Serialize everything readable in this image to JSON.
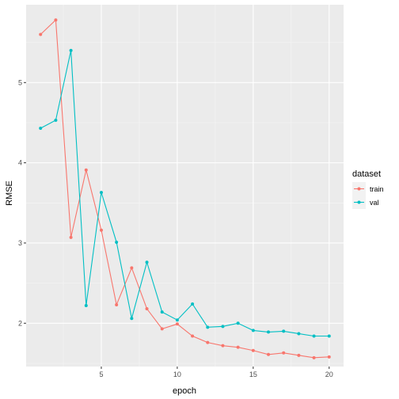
{
  "chart_data": {
    "type": "line",
    "xlabel": "epoch",
    "ylabel": "RMSE",
    "xlim": [
      0.05,
      20.95
    ],
    "ylim": [
      1.46,
      5.97
    ],
    "x_ticks": [
      5,
      10,
      15,
      20
    ],
    "y_ticks": [
      2,
      3,
      4,
      5
    ],
    "grid": true,
    "legend_position": "right",
    "legend_title": "dataset",
    "x": [
      1,
      2,
      3,
      4,
      5,
      6,
      7,
      8,
      9,
      10,
      11,
      12,
      13,
      14,
      15,
      16,
      17,
      18,
      19,
      20
    ],
    "series": [
      {
        "name": "train",
        "color": "#F8766D",
        "values": [
          5.6,
          5.78,
          3.07,
          3.91,
          3.16,
          2.23,
          2.69,
          2.18,
          1.93,
          1.99,
          1.84,
          1.76,
          1.72,
          1.7,
          1.66,
          1.61,
          1.63,
          1.6,
          1.57,
          1.58
        ]
      },
      {
        "name": "val",
        "color": "#00BFC4",
        "values": [
          4.43,
          4.53,
          5.4,
          2.22,
          3.63,
          3.01,
          2.06,
          2.76,
          2.14,
          2.04,
          2.24,
          1.95,
          1.96,
          2.0,
          1.91,
          1.89,
          1.9,
          1.87,
          1.84,
          1.84
        ]
      }
    ]
  }
}
